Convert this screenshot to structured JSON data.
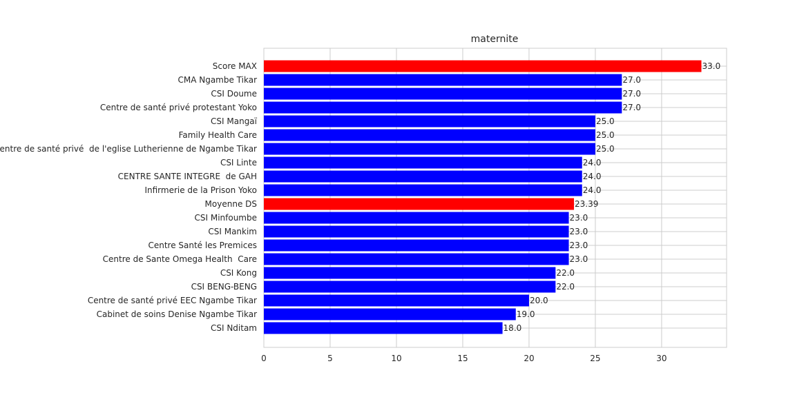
{
  "chart_data": {
    "type": "bar",
    "orientation": "horizontal",
    "title": "maternite",
    "xlabel": "",
    "ylabel": "",
    "xlim": [
      0,
      34.9
    ],
    "xticks": [
      0,
      5,
      10,
      15,
      20,
      25,
      30
    ],
    "grid": true,
    "colors": {
      "highlight": "#ff0000",
      "default": "#0000ff"
    },
    "categories": [
      "Score MAX",
      "CMA Ngambe Tikar",
      "CSI Doume",
      "Centre de santé privé protestant Yoko",
      "CSI Mangaï",
      "Family Health Care",
      "Centre de santé privé  de l'eglise Lutherienne de Ngambe Tikar",
      "CSI Linte",
      "CENTRE SANTE INTEGRE  de GAH",
      "Infirmerie de la Prison Yoko",
      "Moyenne DS",
      "CSI Minfoumbe",
      "CSI Mankim",
      "Centre Santé les Premices",
      "Centre de Sante Omega Health  Care",
      "CSI Kong",
      "CSI BENG-BENG",
      "Centre de santé privé EEC Ngambe Tikar",
      "Cabinet de soins Denise Ngambe Tikar",
      "CSI Nditam"
    ],
    "values": [
      33.0,
      27.0,
      27.0,
      27.0,
      25.0,
      25.0,
      25.0,
      24.0,
      24.0,
      24.0,
      23.39,
      23.0,
      23.0,
      23.0,
      23.0,
      22.0,
      22.0,
      20.0,
      19.0,
      18.0
    ],
    "value_labels": [
      "33.0",
      "27.0",
      "27.0",
      "27.0",
      "25.0",
      "25.0",
      "25.0",
      "24.0",
      "24.0",
      "24.0",
      "23.39",
      "23.0",
      "23.0",
      "23.0",
      "23.0",
      "22.0",
      "22.0",
      "20.0",
      "19.0",
      "18.0"
    ],
    "highlighted": [
      "Score MAX",
      "Moyenne DS"
    ]
  }
}
